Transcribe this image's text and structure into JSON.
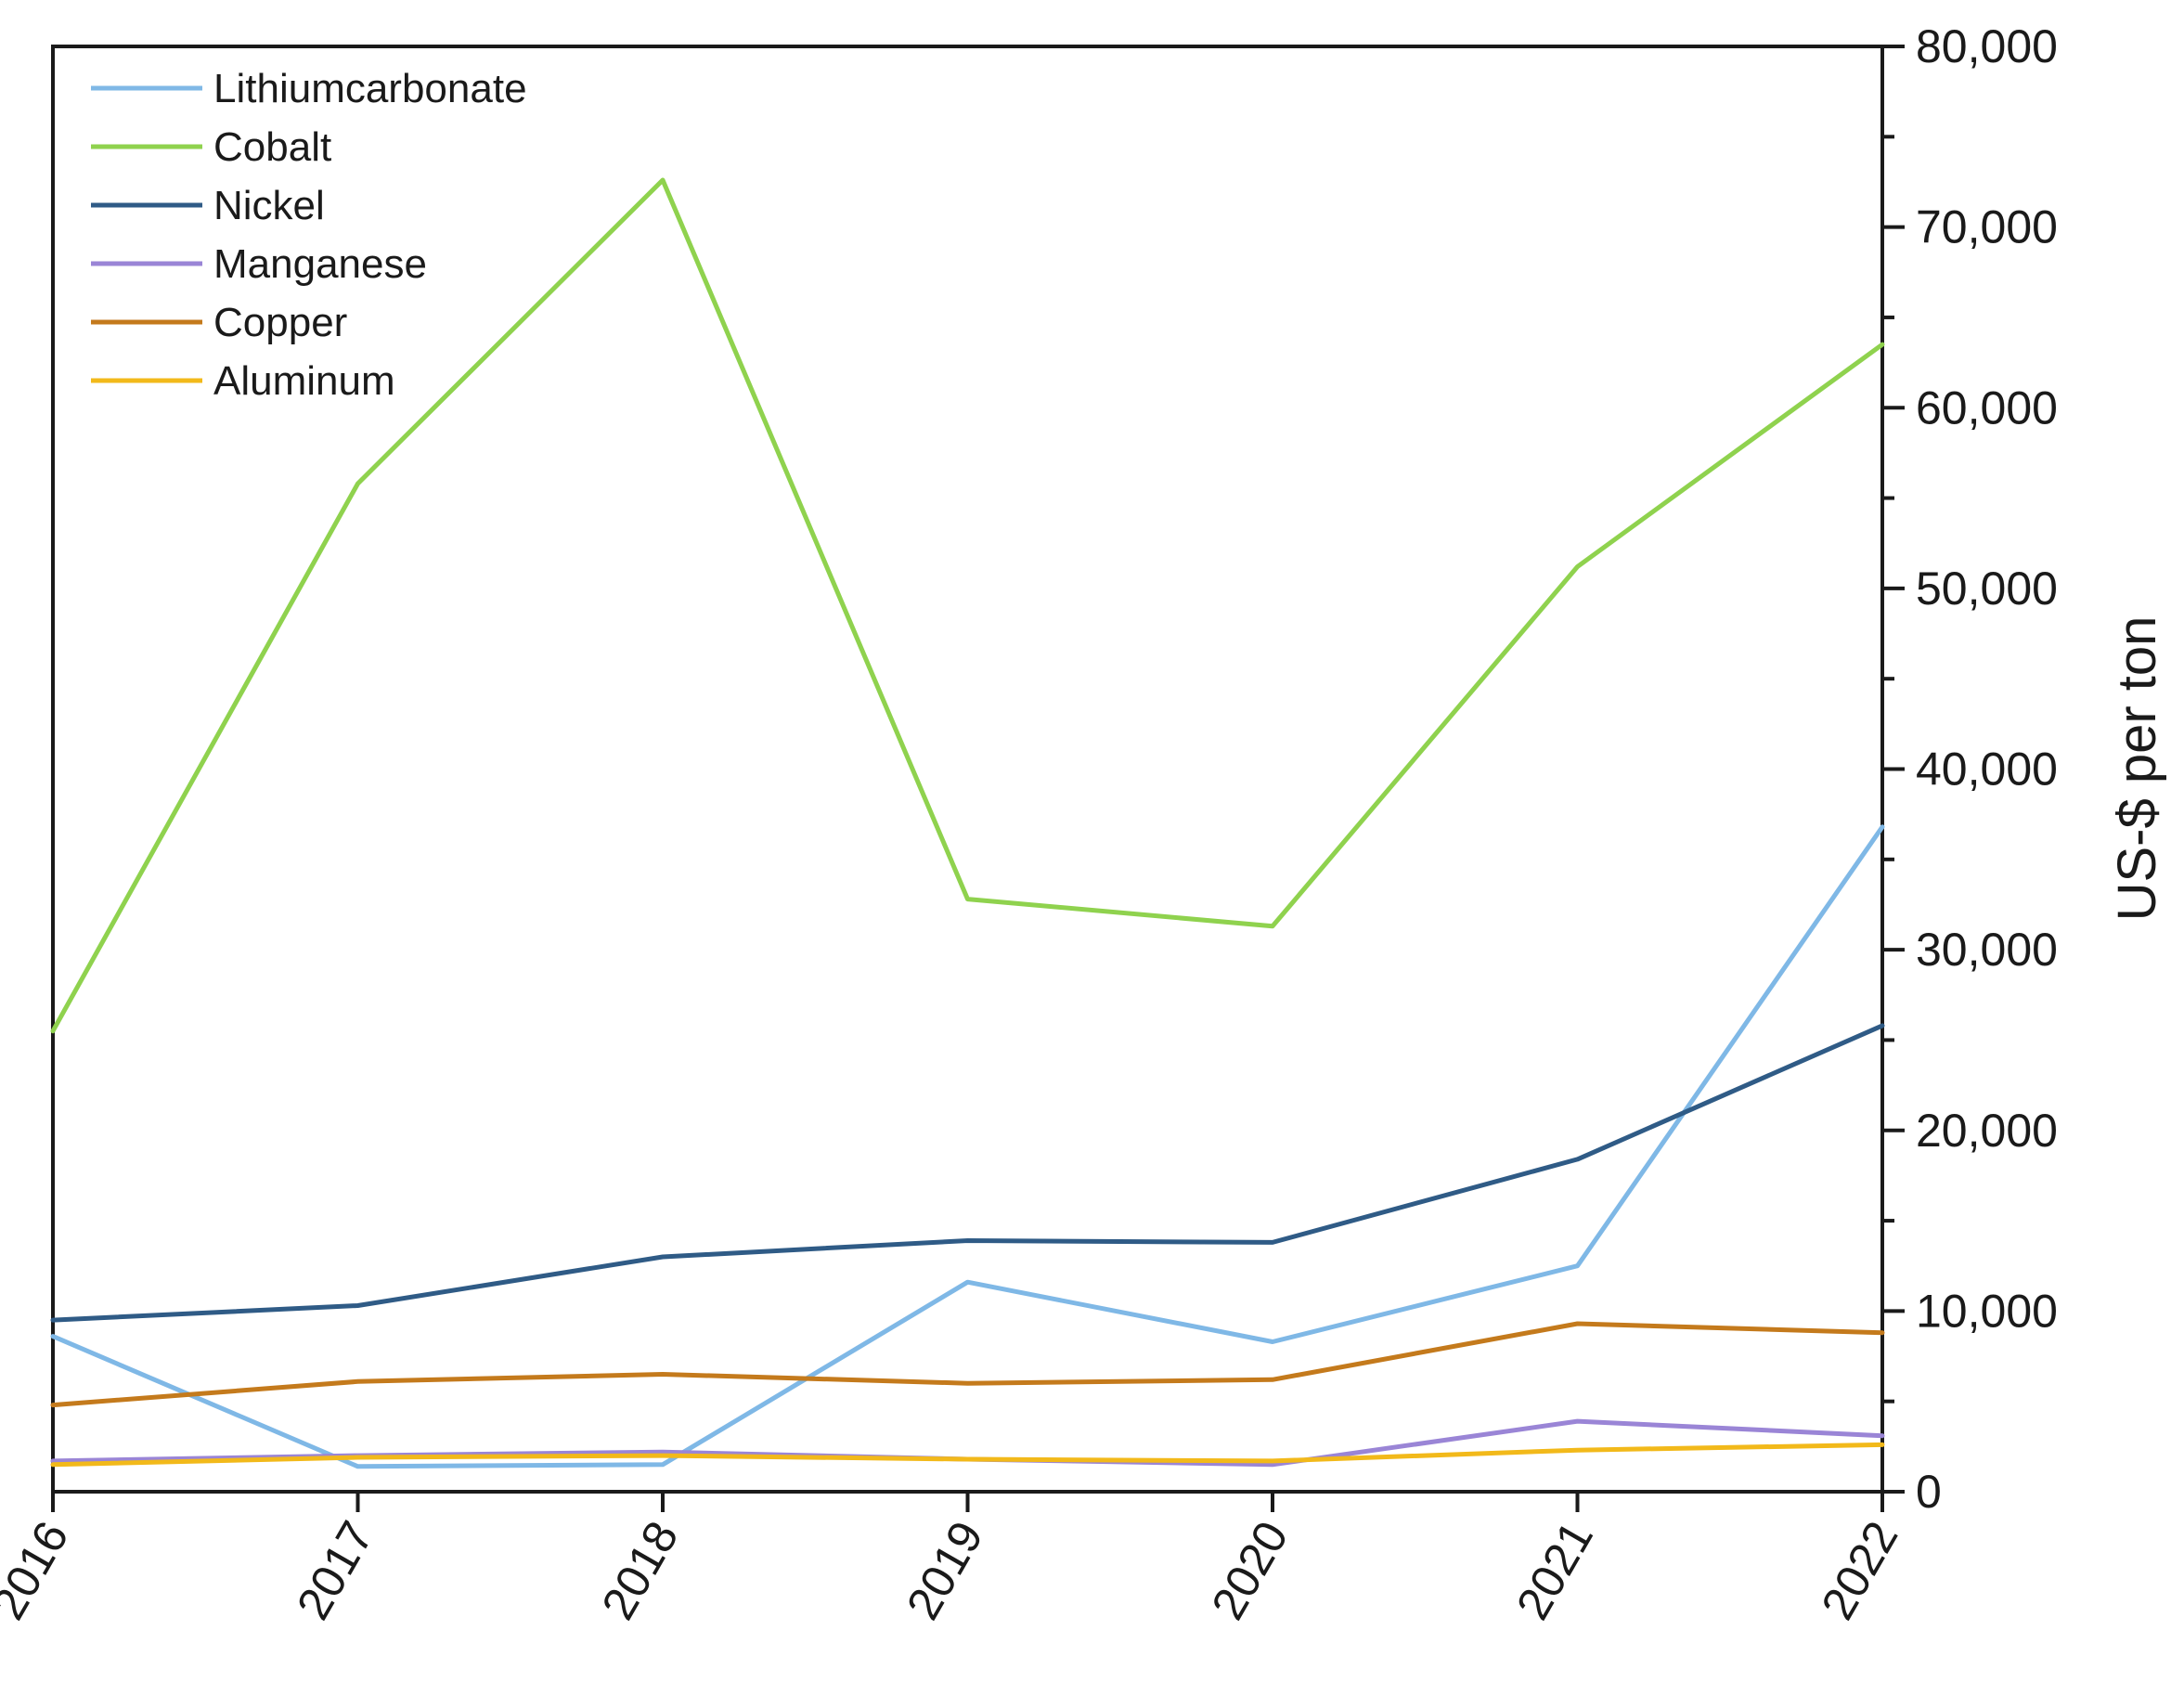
{
  "chart_data": {
    "type": "line",
    "title": "",
    "xlabel": "",
    "ylabel": "US-$ per ton",
    "y_axis_side": "right",
    "x": [
      "2016",
      "2017",
      "2018",
      "2019",
      "2020",
      "2021",
      "2022"
    ],
    "xlim": [
      2016,
      2022
    ],
    "ylim": [
      0,
      80000
    ],
    "y_ticks": [
      0,
      10000,
      20000,
      30000,
      40000,
      50000,
      60000,
      70000,
      80000
    ],
    "y_tick_labels": [
      "0",
      "10,000",
      "20,000",
      "30,000",
      "40,000",
      "50,000",
      "60,000",
      "70,000",
      "80,000"
    ],
    "grid": false,
    "legend_position": "top-left",
    "series": [
      {
        "name": "Lithiumcarbonate",
        "color": "#7fb8e6",
        "values": [
          8600,
          1400,
          1500,
          11600,
          8300,
          12500,
          36800
        ]
      },
      {
        "name": "Cobalt",
        "color": "#8fd24e",
        "values": [
          25500,
          55800,
          72600,
          32800,
          31300,
          51200,
          63500
        ]
      },
      {
        "name": "Nickel",
        "color": "#2f5b86",
        "values": [
          9500,
          10300,
          13000,
          13900,
          13800,
          18400,
          25800
        ]
      },
      {
        "name": "Manganese",
        "color": "#9a85d6",
        "values": [
          1700,
          2000,
          2200,
          1800,
          1500,
          3900,
          3100
        ]
      },
      {
        "name": "Copper",
        "color": "#c47a1c",
        "values": [
          4800,
          6100,
          6500,
          6000,
          6200,
          9300,
          8800
        ]
      },
      {
        "name": "Aluminum",
        "color": "#f2b91a",
        "values": [
          1500,
          1900,
          2000,
          1800,
          1700,
          2300,
          2600
        ]
      }
    ]
  }
}
